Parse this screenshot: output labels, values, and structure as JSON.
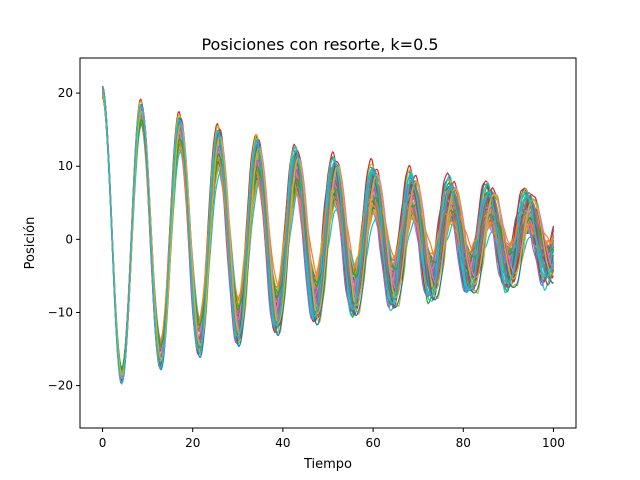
{
  "chart_data": {
    "type": "line",
    "title": "Posiciones con resorte, k=0.5",
    "xlabel": "Tiempo",
    "ylabel": "Posición",
    "xlim": [
      -5,
      105
    ],
    "ylim": [
      -25.8,
      24.8
    ],
    "xticks": [
      0,
      20,
      40,
      60,
      80,
      100
    ],
    "yticks": [
      -20,
      -10,
      0,
      10,
      20
    ],
    "xtick_labels": [
      "0",
      "20",
      "40",
      "60",
      "80",
      "100"
    ],
    "ytick_labels": [
      "−20",
      "−10",
      "0",
      "10",
      "20"
    ],
    "grid": false,
    "legend": "none",
    "model": {
      "description": "ensemble of damped oscillations",
      "t_range": [
        0,
        100
      ],
      "initial_position": 20,
      "period": 8.6,
      "trajectories": 50
    },
    "representative_peaks": [
      {
        "x": 0,
        "y": 20
      },
      {
        "x": 3,
        "y": -23
      },
      {
        "x": 8,
        "y": 22
      },
      {
        "x": 12,
        "y": -21
      },
      {
        "x": 16,
        "y": 18
      },
      {
        "x": 25,
        "y": 15
      },
      {
        "x": 34,
        "y": 13
      },
      {
        "x": 43,
        "y": 10
      },
      {
        "x": 51,
        "y": 9
      },
      {
        "x": 60,
        "y": 7
      },
      {
        "x": 69,
        "y": 6
      },
      {
        "x": 78,
        "y": 5
      },
      {
        "x": 87,
        "y": 4
      },
      {
        "x": 95,
        "y": 4
      },
      {
        "x": 100,
        "y": 0
      }
    ],
    "colors": [
      "#1f77b4",
      "#ff7f0e",
      "#2ca02c",
      "#d62728",
      "#9467bd",
      "#8c564b",
      "#e377c2",
      "#7f7f7f",
      "#bcbd22",
      "#17becf"
    ]
  }
}
